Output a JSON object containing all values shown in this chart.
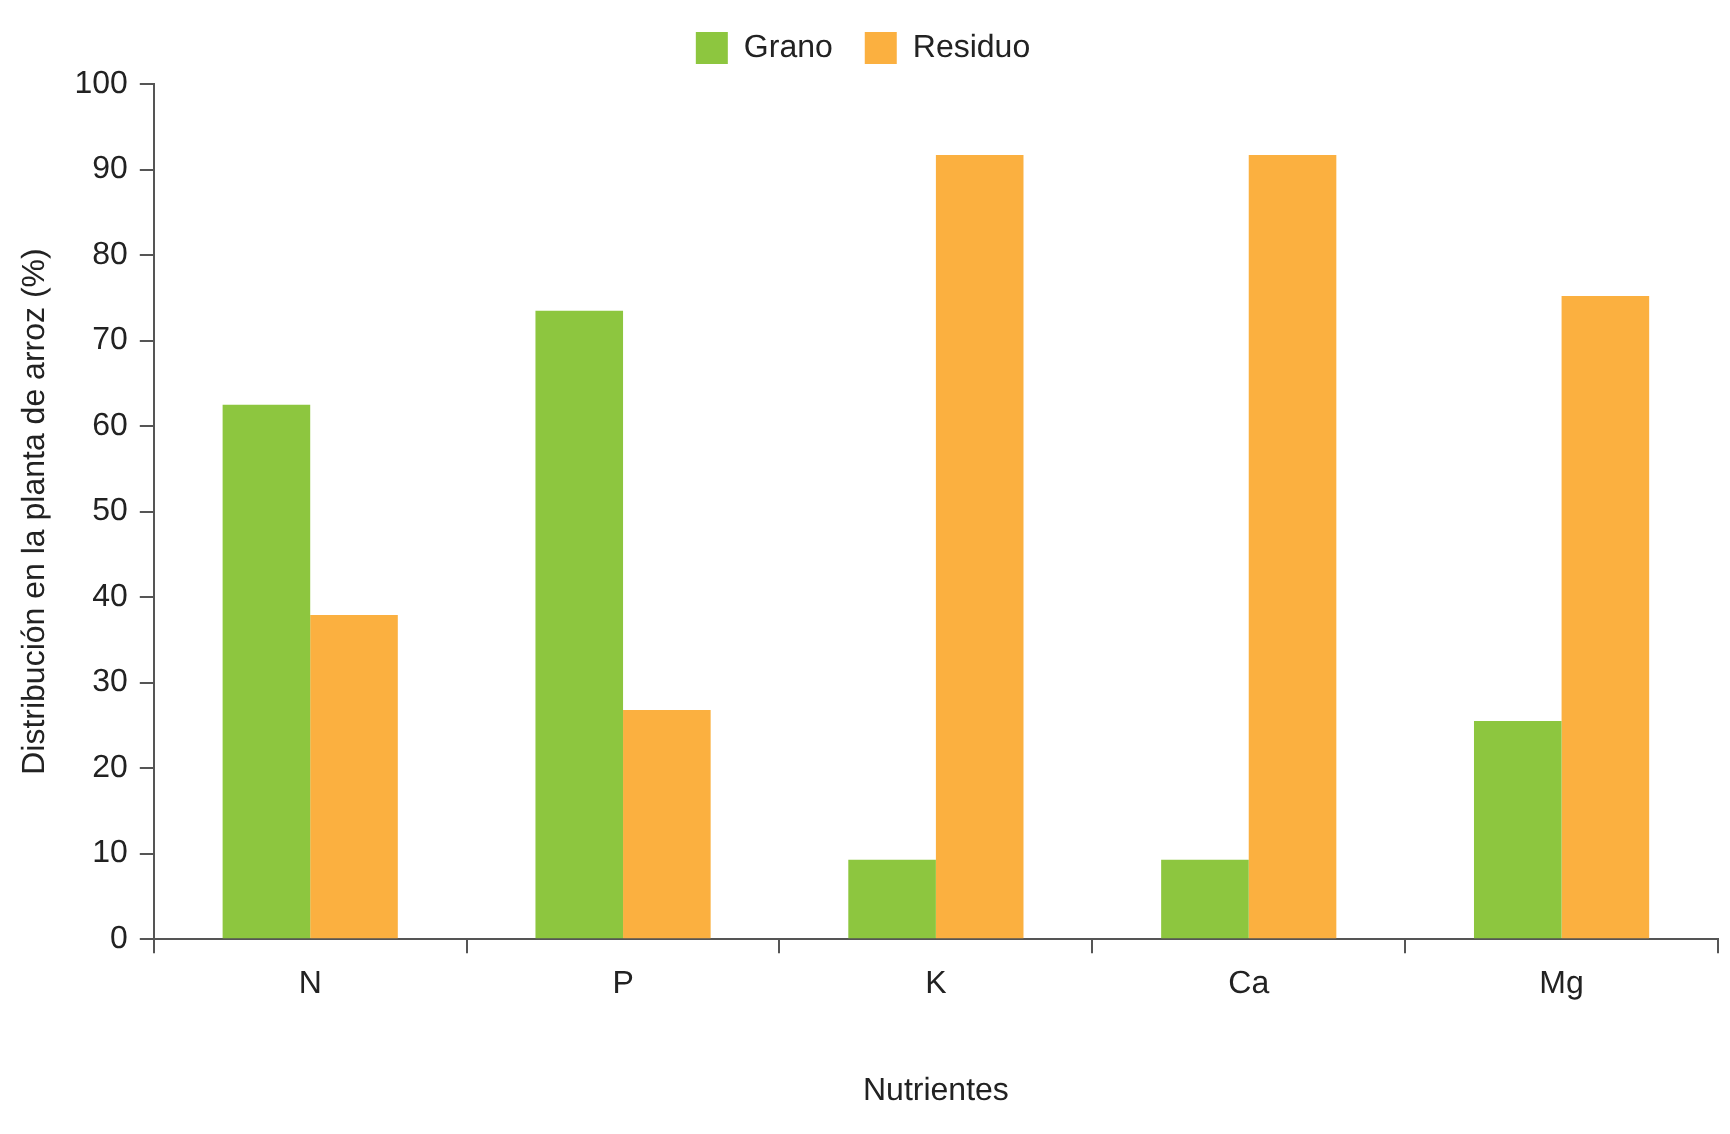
{
  "chart_data": {
    "type": "bar",
    "xlabel": "Nutrientes",
    "ylabel": "Distribución en la planta de arroz (%)",
    "categories": [
      "N",
      "P",
      "K",
      "Ca",
      "Mg"
    ],
    "series": [
      {
        "name": "Grano",
        "color": "#8dc63f",
        "values": [
          62.5,
          73.5,
          9.3,
          9.3,
          25.5
        ]
      },
      {
        "name": "Residuo",
        "color": "#fbb040",
        "values": [
          37.9,
          26.8,
          91.7,
          91.7,
          75.2
        ]
      }
    ],
    "ylim": [
      0,
      100
    ],
    "yticks": [
      0,
      10,
      20,
      30,
      40,
      50,
      60,
      70,
      80,
      90,
      100
    ],
    "grid": false,
    "legend": "top"
  }
}
